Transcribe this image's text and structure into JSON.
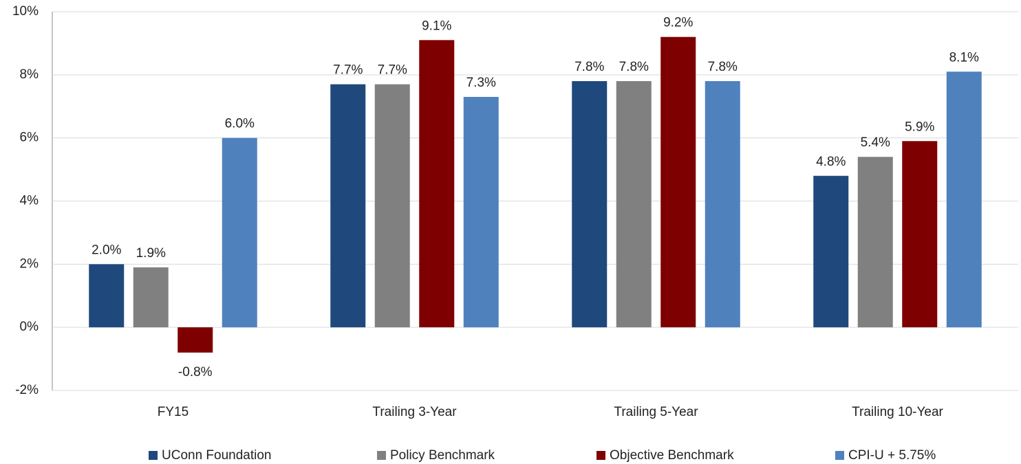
{
  "chart_data": {
    "type": "bar",
    "categories": [
      "FY15",
      "Trailing 3-Year",
      "Trailing 5-Year",
      "Trailing 10-Year"
    ],
    "series": [
      {
        "name": "UConn Foundation",
        "color": "#1f497d",
        "values": [
          2.0,
          7.7,
          7.8,
          4.8
        ],
        "value_labels": [
          "2.0%",
          "7.7%",
          "7.8%",
          "4.8%"
        ]
      },
      {
        "name": "Policy Benchmark",
        "color": "#808080",
        "values": [
          1.9,
          7.7,
          7.8,
          5.4
        ],
        "value_labels": [
          "1.9%",
          "7.7%",
          "7.8%",
          "5.4%"
        ]
      },
      {
        "name": "Objective Benchmark",
        "color": "#7f0000",
        "values": [
          -0.8,
          9.1,
          9.2,
          5.9
        ],
        "value_labels": [
          "-0.8%",
          "9.1%",
          "9.2%",
          "5.9%"
        ]
      },
      {
        "name": "CPI-U + 5.75%",
        "color": "#4f81bd",
        "values": [
          6.0,
          7.3,
          7.8,
          8.1
        ],
        "value_labels": [
          "6.0%",
          "7.3%",
          "7.8%",
          "8.1%"
        ]
      }
    ],
    "ylim": [
      -2,
      10
    ],
    "yticks": [
      {
        "value": -2,
        "label": "-2%"
      },
      {
        "value": 0,
        "label": "0%"
      },
      {
        "value": 2,
        "label": "2%"
      },
      {
        "value": 4,
        "label": "4%"
      },
      {
        "value": 6,
        "label": "6%"
      },
      {
        "value": 8,
        "label": "8%"
      },
      {
        "value": 10,
        "label": "10%"
      }
    ],
    "grid": true,
    "legend": "bottom"
  }
}
